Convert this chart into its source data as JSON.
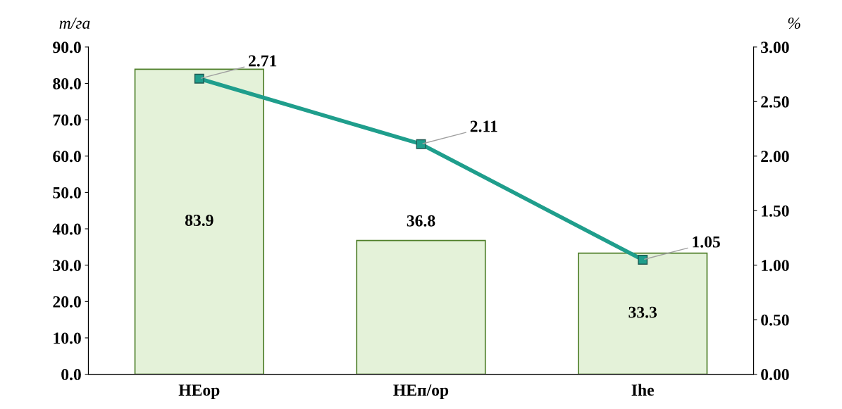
{
  "chart_data": {
    "type": "bar",
    "categories": [
      "НЕор",
      "НЕп/ор",
      "Ihe"
    ],
    "ylabel": "т/га",
    "y2label": "%",
    "series": [
      {
        "color": "#e4f2d9",
        "values": [
          83.9,
          36.8,
          33.3
        ]
      },
      {
        "type": "line",
        "axis": "y2",
        "color": "#1f9e8c",
        "values": [
          2.71,
          2.11,
          1.05
        ]
      }
    ],
    "ylim": [
      0,
      90
    ],
    "yticks": [
      {
        "value": 0,
        "label": "0.0"
      },
      {
        "value": 10,
        "label": "10.0"
      },
      {
        "value": 20,
        "label": "20.0"
      },
      {
        "value": 30,
        "label": "30.0"
      },
      {
        "value": 40,
        "label": "40.0"
      },
      {
        "value": 50,
        "label": "50.0"
      },
      {
        "value": 60,
        "label": "60.0"
      },
      {
        "value": 70,
        "label": "70.0"
      },
      {
        "value": 80,
        "label": "80.0"
      },
      {
        "value": 90,
        "label": "90.0"
      }
    ],
    "y2lim": [
      0,
      3
    ],
    "y2ticks": [
      {
        "value": 0,
        "label": "0.00"
      },
      {
        "value": 0.5,
        "label": "0.50"
      },
      {
        "value": 1,
        "label": "1.00"
      },
      {
        "value": 1.5,
        "label": "1.50"
      },
      {
        "value": 2,
        "label": "2.00"
      },
      {
        "value": 2.5,
        "label": "2.50"
      },
      {
        "value": 3,
        "label": "3.00"
      }
    ],
    "data_labels": true,
    "marker": "square",
    "grid": false,
    "legend": false
  }
}
